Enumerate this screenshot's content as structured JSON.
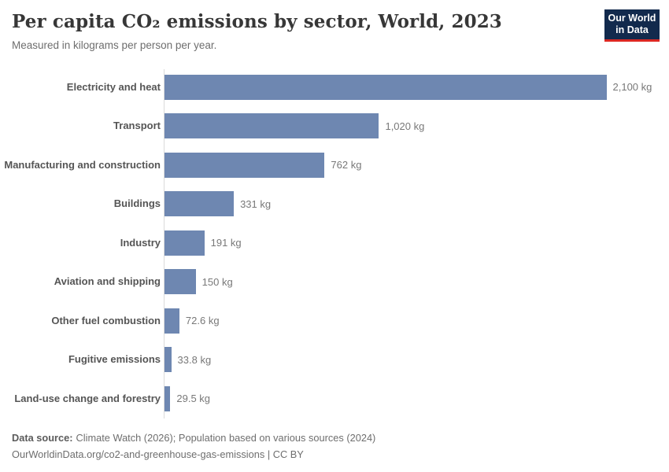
{
  "header": {
    "title": "Per capita CO₂ emissions by sector, World, 2023",
    "subtitle": "Measured in kilograms per person per year.",
    "logo": {
      "line1": "Our World",
      "line2": "in Data"
    }
  },
  "chart_data": {
    "type": "bar",
    "orientation": "horizontal",
    "title": "Per capita CO₂ emissions by sector, World, 2023",
    "subtitle": "Measured in kilograms per person per year.",
    "unit": "kg",
    "xlim": [
      0,
      2100
    ],
    "grid": false,
    "legend": "none",
    "bar_color": "#6e87b1",
    "categories": [
      "Electricity and heat",
      "Transport",
      "Manufacturing and construction",
      "Buildings",
      "Industry",
      "Aviation and shipping",
      "Other fuel combustion",
      "Fugitive emissions",
      "Land-use change and forestry"
    ],
    "values": [
      2100,
      1020,
      762,
      331,
      191,
      150,
      72.6,
      33.8,
      29.5
    ],
    "value_labels": [
      "2,100 kg",
      "1,020 kg",
      "762 kg",
      "331 kg",
      "191 kg",
      "150 kg",
      "72.6 kg",
      "33.8 kg",
      "29.5 kg"
    ]
  },
  "footer": {
    "source_label": "Data source:",
    "source_text": "Climate Watch (2026); Population based on various sources (2024)",
    "citation": "OurWorldinData.org/co2-and-greenhouse-gas-emissions | CC BY"
  },
  "colors": {
    "bar": "#6e87b1",
    "axis_line": "#dadada",
    "title_text": "#373737",
    "label_text": "#555555",
    "value_text": "#787878",
    "logo_bg": "#122a4d",
    "logo_accent": "#dc2823"
  }
}
